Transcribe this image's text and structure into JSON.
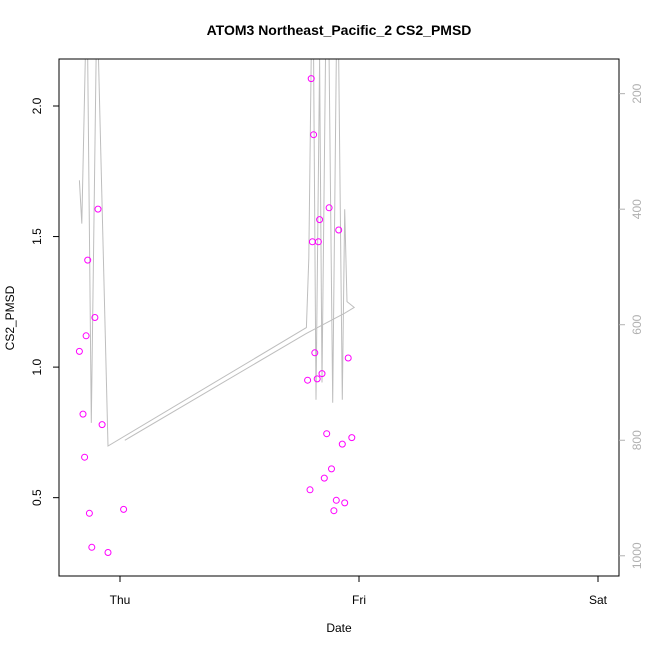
{
  "chart_data": {
    "type": "scatter",
    "title": "ATOM3 Northeast_Pacific_2 CS2_PMSD",
    "xlabel": "Date",
    "ylabel": "CS2_PMSD",
    "x_ticks": [
      "Thu",
      "Fri",
      "Sat"
    ],
    "ylim": [
      0.2,
      2.18
    ],
    "y_ticks": [
      "0.5",
      "1.0",
      "1.5",
      "2.0"
    ],
    "y_tick_values": [
      0.5,
      1.0,
      1.5,
      2.0
    ],
    "y2_ticks": [
      "200",
      "400",
      "600",
      "800",
      "1000"
    ],
    "y2_tick_values": [
      200,
      400,
      600,
      800,
      1000
    ],
    "y2lim": [
      1035,
      140
    ],
    "point_color": "#ff00ff",
    "line_color": "#bebebe",
    "x_range_days": [
      -0.2,
      1.05
    ],
    "points": [
      {
        "x": -0.17,
        "y": 1.06
      },
      {
        "x": -0.155,
        "y": 0.82
      },
      {
        "x": -0.148,
        "y": 0.655
      },
      {
        "x": -0.142,
        "y": 1.12
      },
      {
        "x": -0.135,
        "y": 1.41
      },
      {
        "x": -0.128,
        "y": 0.44
      },
      {
        "x": -0.118,
        "y": 0.31
      },
      {
        "x": -0.105,
        "y": 1.19
      },
      {
        "x": -0.092,
        "y": 1.605
      },
      {
        "x": -0.075,
        "y": 0.78
      },
      {
        "x": -0.05,
        "y": 0.29
      },
      {
        "x": 0.015,
        "y": 0.455
      },
      {
        "x": 0.785,
        "y": 0.95
      },
      {
        "x": 0.795,
        "y": 0.53
      },
      {
        "x": 0.8,
        "y": 2.105
      },
      {
        "x": 0.805,
        "y": 1.48
      },
      {
        "x": 0.81,
        "y": 1.89
      },
      {
        "x": 0.815,
        "y": 1.055
      },
      {
        "x": 0.825,
        "y": 0.955
      },
      {
        "x": 0.83,
        "y": 1.48
      },
      {
        "x": 0.835,
        "y": 1.565
      },
      {
        "x": 0.845,
        "y": 0.975
      },
      {
        "x": 0.855,
        "y": 0.575
      },
      {
        "x": 0.865,
        "y": 0.745
      },
      {
        "x": 0.875,
        "y": 1.61
      },
      {
        "x": 0.885,
        "y": 0.61
      },
      {
        "x": 0.895,
        "y": 0.45
      },
      {
        "x": 0.905,
        "y": 0.49
      },
      {
        "x": 0.915,
        "y": 1.525
      },
      {
        "x": 0.93,
        "y": 0.705
      },
      {
        "x": 0.94,
        "y": 0.48
      },
      {
        "x": 0.955,
        "y": 1.035
      },
      {
        "x": 0.97,
        "y": 0.73
      }
    ],
    "line_series": [
      {
        "x": -0.17,
        "y2": 350
      },
      {
        "x": -0.16,
        "y2": 425
      },
      {
        "x": -0.145,
        "y2": 140
      },
      {
        "x": -0.135,
        "y2": 140
      },
      {
        "x": -0.12,
        "y2": 770
      },
      {
        "x": -0.1,
        "y2": 140
      },
      {
        "x": -0.09,
        "y2": 140
      },
      {
        "x": -0.05,
        "y2": 810
      },
      {
        "x": 0.78,
        "y2": 605
      },
      {
        "x": 0.79,
        "y2": 485
      },
      {
        "x": 0.8,
        "y2": 140
      },
      {
        "x": 0.81,
        "y2": 140
      },
      {
        "x": 0.82,
        "y2": 730
      },
      {
        "x": 0.835,
        "y2": 140
      },
      {
        "x": 0.845,
        "y2": 700
      },
      {
        "x": 0.86,
        "y2": 140
      },
      {
        "x": 0.875,
        "y2": 140
      },
      {
        "x": 0.89,
        "y2": 735
      },
      {
        "x": 0.905,
        "y2": 140
      },
      {
        "x": 0.915,
        "y2": 140
      },
      {
        "x": 0.93,
        "y2": 730
      },
      {
        "x": 0.94,
        "y2": 400
      },
      {
        "x": 0.95,
        "y2": 560
      },
      {
        "x": 0.98,
        "y2": 570
      },
      {
        "x": 0.94,
        "y2": 580
      },
      {
        "x": 0.78,
        "y2": 615
      },
      {
        "x": 0.02,
        "y2": 800
      }
    ]
  }
}
